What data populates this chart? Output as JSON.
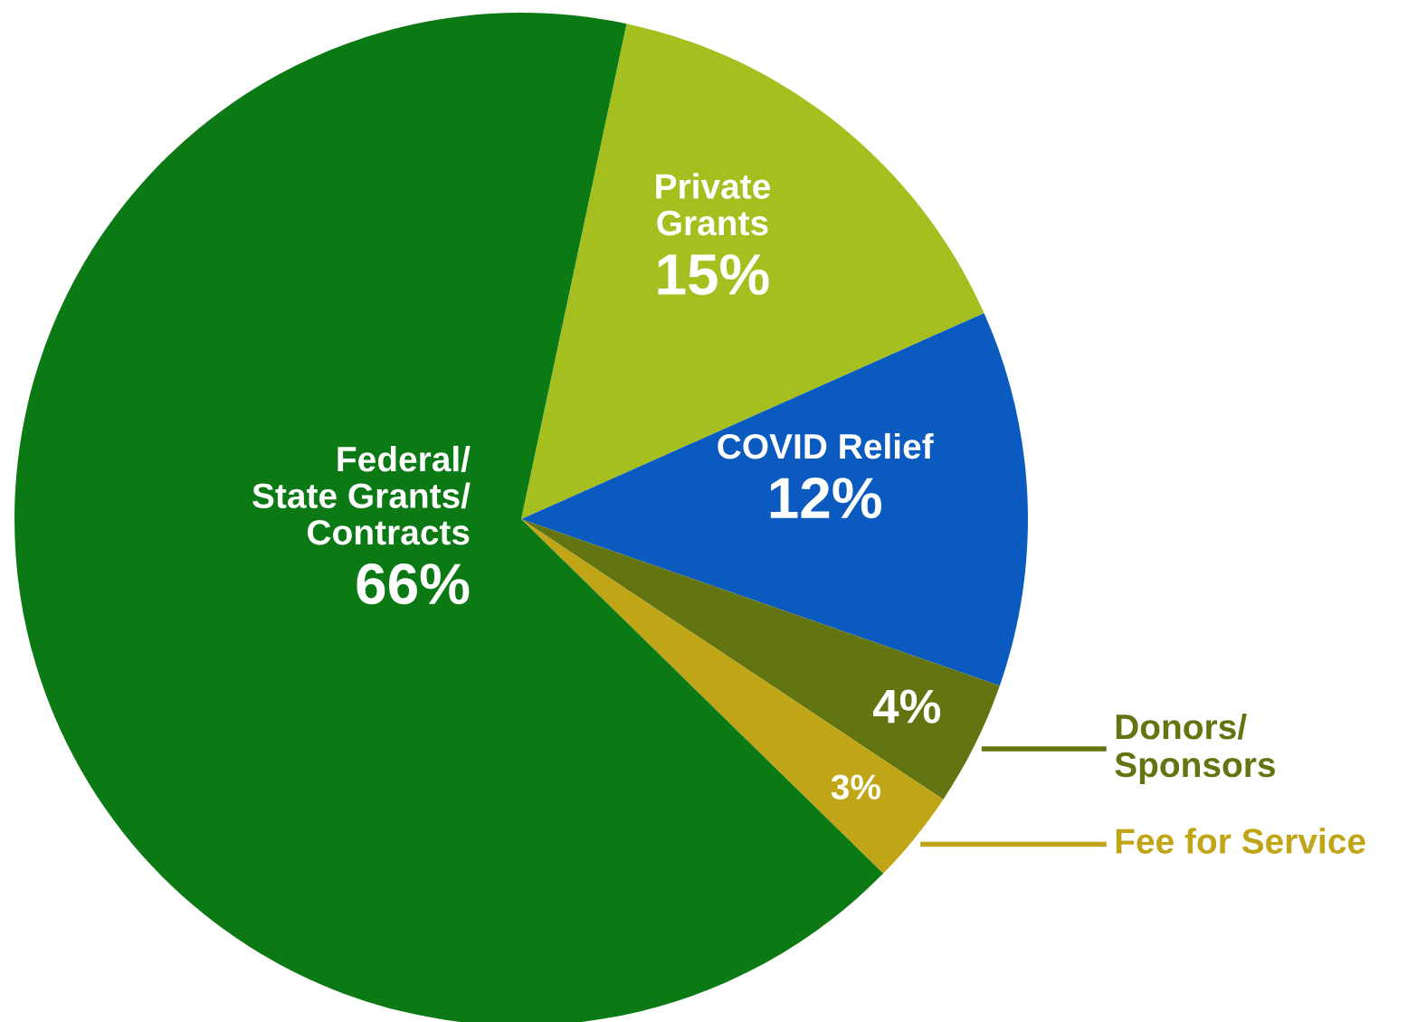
{
  "chart_data": {
    "type": "pie",
    "categories": [
      "Private\nGrants",
      "COVID Relief",
      "Donors/\nSponsors",
      "Fee for Service",
      "Federal/\nState Grants/\nContracts"
    ],
    "values": [
      15,
      12,
      4,
      3,
      66
    ],
    "colors": [
      "#a4bf1e",
      "#0a5abf",
      "#637510",
      "#c0a516",
      "#0b7a14"
    ],
    "value_labels": [
      "15%",
      "12%",
      "4%",
      "3%",
      "66%"
    ],
    "legend": false
  }
}
